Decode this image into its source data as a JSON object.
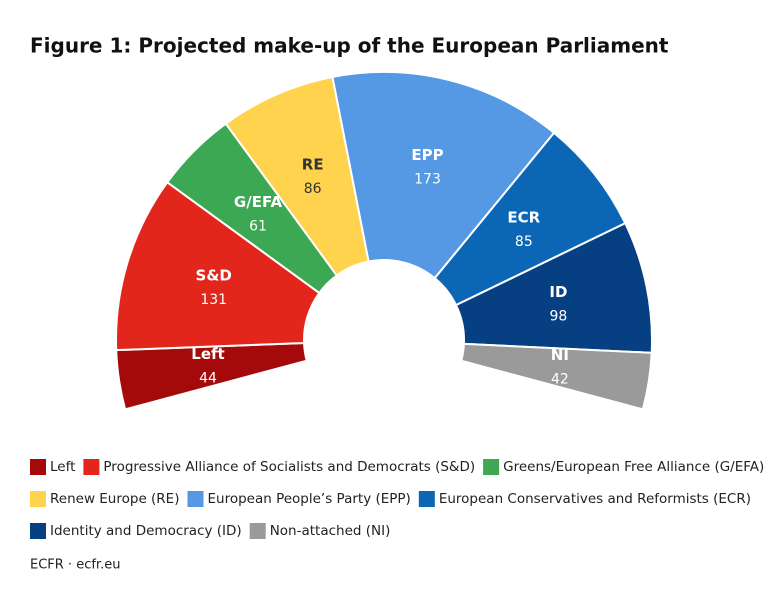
{
  "chart_data": {
    "type": "parliament",
    "title": "Figure 1: Projected make-up of the European Parliament",
    "categories": [
      "Left",
      "S&D",
      "G/EFA",
      "RE",
      "EPP",
      "ECR",
      "ID",
      "NI"
    ],
    "values": [
      44,
      131,
      61,
      86,
      173,
      85,
      98,
      42
    ],
    "colors": [
      "#a50a0a",
      "#e3261b",
      "#3da853",
      "#ffd34d",
      "#5598e3",
      "#0b67b6",
      "#073f83",
      "#9a9a9a"
    ],
    "legend": [
      "Left",
      "Progressive Alliance of Socialists and Democrats (S&D)",
      "Greens/European Free Alliance (G/EFA)",
      "Renew Europe (RE)",
      "European People’s Party (EPP)",
      "European Conservatives and Reformists (ECR)",
      "Identity and Democracy (ID)",
      "Non-attached (NI)"
    ],
    "source": "ECFR · ecfr.eu"
  }
}
